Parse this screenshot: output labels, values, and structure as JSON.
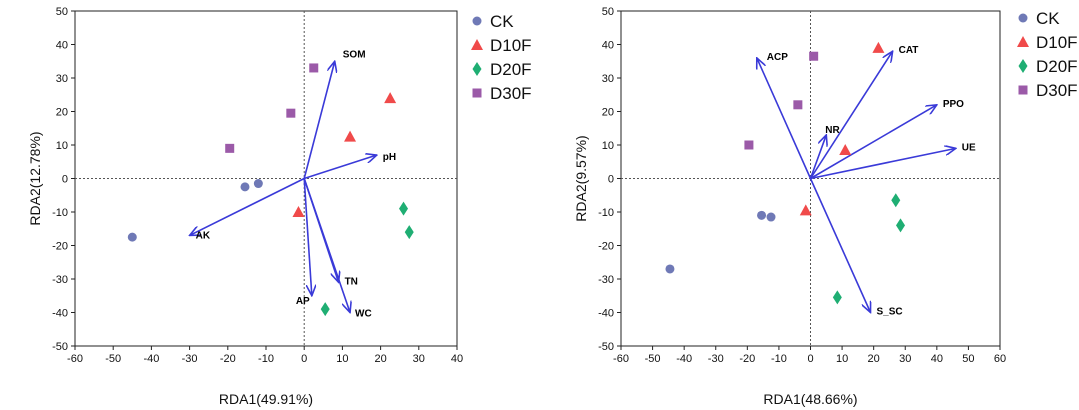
{
  "colors": {
    "CK": "#6f79b6",
    "D10F": "#f04a4a",
    "D20F": "#1fae73",
    "D30F": "#9b5aa8",
    "arrow": "#3a3ad8"
  },
  "chart_data": [
    {
      "type": "scatter",
      "title": "",
      "xlabel": "RDA1(49.91%)",
      "ylabel": "RDA2(12.78%)",
      "xlim": [
        -60,
        40
      ],
      "ylim": [
        -50,
        50
      ],
      "xticks": [
        -60,
        -50,
        -40,
        -30,
        -20,
        -10,
        0,
        10,
        20,
        30,
        40
      ],
      "yticks": [
        -50,
        -40,
        -30,
        -20,
        -10,
        0,
        10,
        20,
        30,
        40,
        50
      ],
      "legend": [
        {
          "name": "CK",
          "marker": "circle",
          "color_key": "CK"
        },
        {
          "name": "D10F",
          "marker": "triangle",
          "color_key": "D10F"
        },
        {
          "name": "D20F",
          "marker": "diamond",
          "color_key": "D20F"
        },
        {
          "name": "D30F",
          "marker": "square",
          "color_key": "D30F"
        }
      ],
      "series": [
        {
          "name": "CK",
          "points": [
            [
              -45,
              -17.5
            ],
            [
              -15.5,
              -2.5
            ],
            [
              -12,
              -1.5
            ]
          ]
        },
        {
          "name": "D10F",
          "points": [
            [
              22.5,
              24
            ],
            [
              12,
              12.5
            ],
            [
              -1.5,
              -10
            ]
          ]
        },
        {
          "name": "D20F",
          "points": [
            [
              26,
              -9
            ],
            [
              27.5,
              -16
            ],
            [
              5.5,
              -39
            ]
          ]
        },
        {
          "name": "D30F",
          "points": [
            [
              2.5,
              33
            ],
            [
              -3.5,
              19.5
            ],
            [
              -19.5,
              9
            ]
          ]
        }
      ],
      "vectors": [
        {
          "label": "SOM",
          "x": 8,
          "y": 35
        },
        {
          "label": "pH",
          "x": 19,
          "y": 7
        },
        {
          "label": "AK",
          "x": -30,
          "y": -17
        },
        {
          "label": "TN",
          "x": 9,
          "y": -31
        },
        {
          "label": "AP",
          "x": 2,
          "y": -35
        },
        {
          "label": "WC",
          "x": 12,
          "y": -40
        }
      ]
    },
    {
      "type": "scatter",
      "title": "",
      "xlabel": "RDA1(48.66%)",
      "ylabel": "RDA2(9.57%)",
      "xlim": [
        -60,
        60
      ],
      "ylim": [
        -50,
        50
      ],
      "xticks": [
        -60,
        -50,
        -40,
        -30,
        -20,
        -10,
        0,
        10,
        20,
        30,
        40,
        50,
        60
      ],
      "yticks": [
        -50,
        -40,
        -30,
        -20,
        -10,
        0,
        10,
        20,
        30,
        40,
        50
      ],
      "legend": [
        {
          "name": "CK",
          "marker": "circle",
          "color_key": "CK"
        },
        {
          "name": "D10F",
          "marker": "triangle",
          "color_key": "D10F"
        },
        {
          "name": "D20F",
          "marker": "diamond",
          "color_key": "D20F"
        },
        {
          "name": "D30F",
          "marker": "square",
          "color_key": "D30F"
        }
      ],
      "series": [
        {
          "name": "CK",
          "points": [
            [
              -44.5,
              -27
            ],
            [
              -15.5,
              -11
            ],
            [
              -12.5,
              -11.5
            ]
          ]
        },
        {
          "name": "D10F",
          "points": [
            [
              21.5,
              39
            ],
            [
              11,
              8.5
            ],
            [
              -1.5,
              -9.5
            ]
          ]
        },
        {
          "name": "D20F",
          "points": [
            [
              27,
              -6.5
            ],
            [
              28.5,
              -14
            ],
            [
              8.5,
              -35.5
            ]
          ]
        },
        {
          "name": "D30F",
          "points": [
            [
              1,
              36.5
            ],
            [
              -4,
              22
            ],
            [
              -19.5,
              10
            ]
          ]
        }
      ],
      "vectors": [
        {
          "label": "ACP",
          "x": -17,
          "y": 36
        },
        {
          "label": "CAT",
          "x": 26,
          "y": 38
        },
        {
          "label": "PPO",
          "x": 40,
          "y": 22
        },
        {
          "label": "NR",
          "x": 5,
          "y": 13
        },
        {
          "label": "UE",
          "x": 46,
          "y": 9
        },
        {
          "label": "S_SC",
          "x": 19,
          "y": -40
        }
      ]
    }
  ]
}
